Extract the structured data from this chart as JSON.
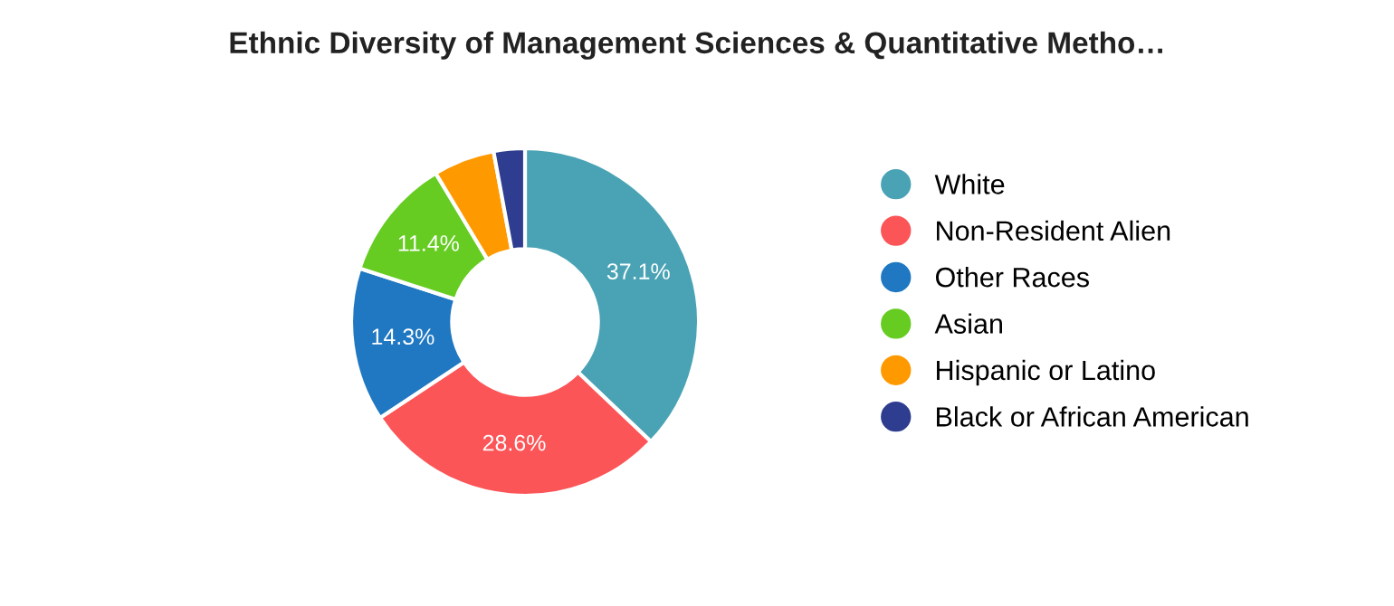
{
  "chart_data": {
    "type": "donut",
    "title": "Ethnic Diversity of Management Sciences & Quantitative Metho…",
    "categories": [
      "White",
      "Non-Resident Alien",
      "Other Races",
      "Asian",
      "Hispanic or Latino",
      "Black or African American"
    ],
    "values": [
      37.1,
      28.6,
      14.3,
      11.4,
      5.7,
      2.9
    ],
    "colors": [
      "#4aa3b5",
      "#fc5558",
      "#1f78c1",
      "#66cc22",
      "#ff9900",
      "#2e3d8f"
    ],
    "value_labels": [
      "37.1%",
      "28.6%",
      "14.3%",
      "11.4%",
      null,
      null
    ],
    "legend": "right"
  }
}
